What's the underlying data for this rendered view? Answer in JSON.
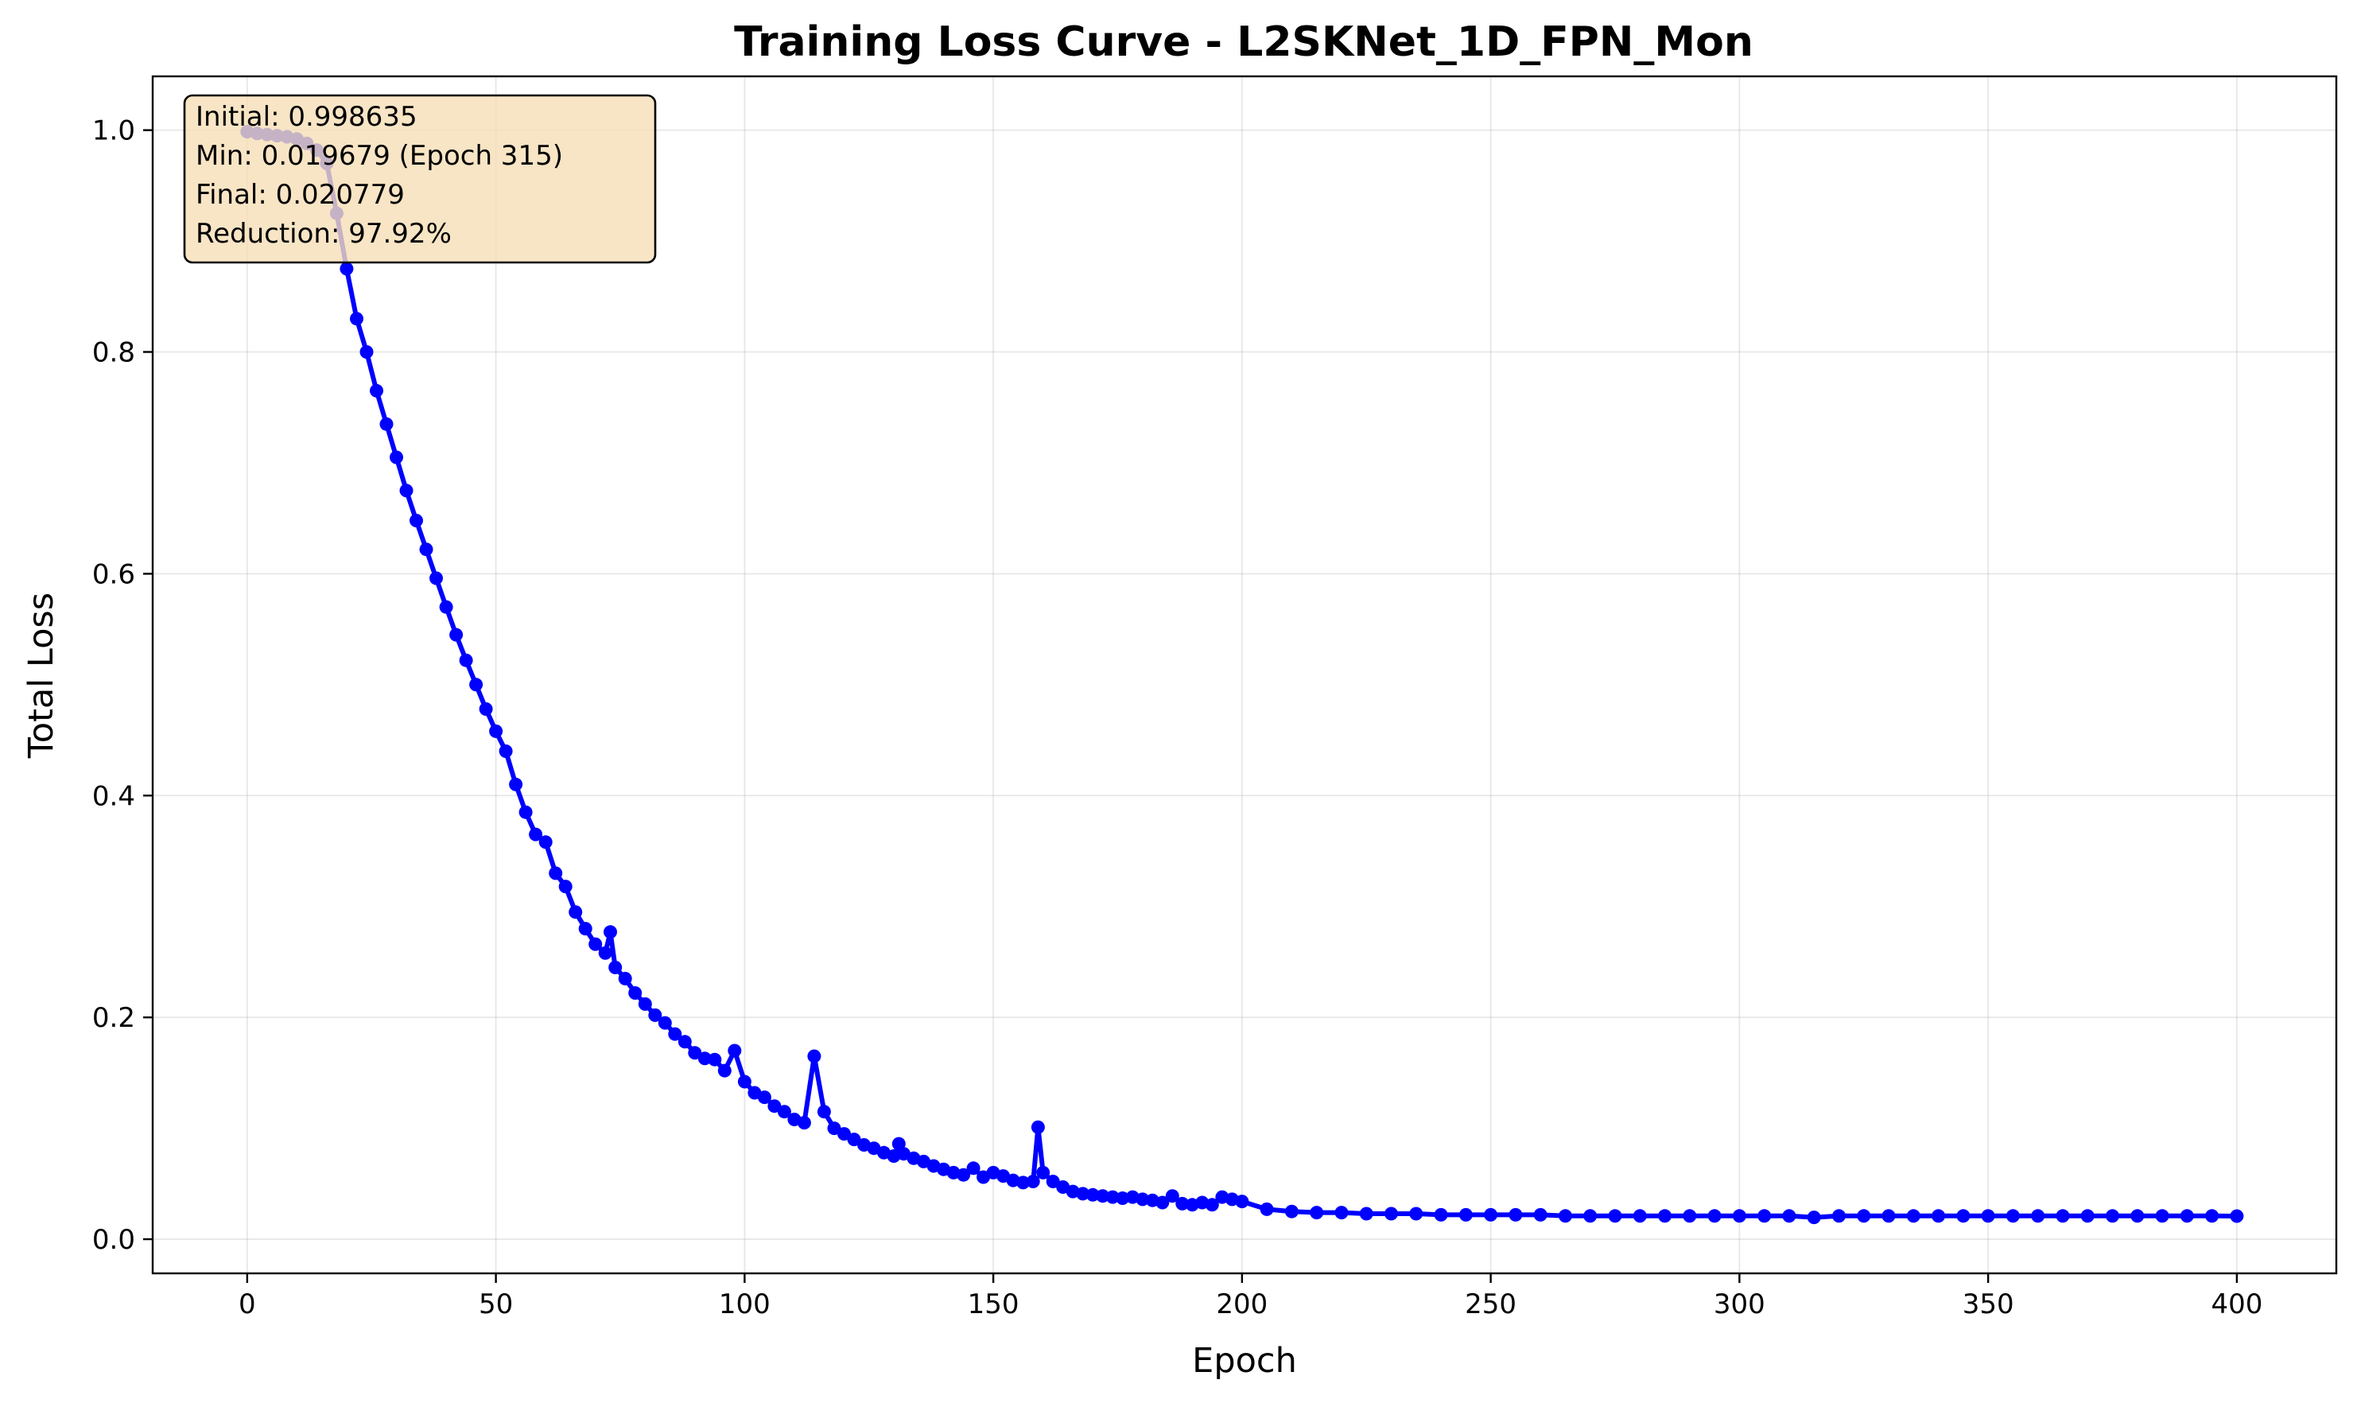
{
  "chart_data": {
    "type": "line",
    "title": "Training Loss Curve - L2SKNet_1D_FPN_Mon",
    "xlabel": "Epoch",
    "ylabel": "Total Loss",
    "xlim": [
      -19,
      420
    ],
    "ylim": [
      -0.0308,
      1.0485
    ],
    "xticks": [
      0,
      50,
      100,
      150,
      200,
      250,
      300,
      350,
      400
    ],
    "yticks": [
      0.0,
      0.2,
      0.4,
      0.6,
      0.8,
      1.0
    ],
    "xtick_labels": [
      "0",
      "50",
      "100",
      "150",
      "200",
      "250",
      "300",
      "350",
      "400"
    ],
    "ytick_labels": [
      "0.0",
      "0.2",
      "0.4",
      "0.6",
      "0.8",
      "1.0"
    ],
    "grid": true,
    "line_color": "#0000ff",
    "annotation_box_color": "#f5deb3",
    "annotation": [
      "Initial: 0.998635",
      "Min: 0.019679 (Epoch 315)",
      "Final: 0.020779",
      "Reduction: 97.92%"
    ],
    "series": [
      {
        "x": [
          0,
          2,
          4,
          6,
          8,
          10,
          12,
          14,
          16,
          18,
          20,
          22,
          24,
          26,
          28,
          30,
          32,
          34,
          36,
          38,
          40,
          42,
          44,
          46,
          48,
          50,
          52,
          54,
          56,
          58,
          60,
          62,
          64,
          66,
          68,
          70,
          72,
          73,
          74,
          76,
          78,
          80,
          82,
          84,
          86,
          88,
          90,
          92,
          94,
          96,
          98,
          100,
          102,
          104,
          106,
          108,
          110,
          112,
          114,
          116,
          118,
          120,
          122,
          124,
          126,
          128,
          130,
          131,
          132,
          134,
          136,
          138,
          140,
          142,
          144,
          146,
          148,
          150,
          152,
          154,
          156,
          158,
          159,
          160,
          162,
          164,
          166,
          168,
          170,
          172,
          174,
          176,
          178,
          180,
          182,
          184,
          186,
          188,
          190,
          192,
          194,
          196,
          198,
          200,
          205,
          210,
          215,
          220,
          225,
          230,
          235,
          240,
          245,
          250,
          255,
          260,
          265,
          270,
          275,
          280,
          285,
          290,
          295,
          300,
          305,
          310,
          315,
          320,
          325,
          330,
          335,
          340,
          345,
          350,
          355,
          360,
          365,
          370,
          375,
          380,
          385,
          390,
          395,
          400
        ],
        "y": [
          0.9986,
          0.997,
          0.996,
          0.995,
          0.994,
          0.992,
          0.988,
          0.982,
          0.97,
          0.925,
          0.875,
          0.83,
          0.8,
          0.765,
          0.735,
          0.705,
          0.675,
          0.648,
          0.622,
          0.596,
          0.57,
          0.545,
          0.522,
          0.5,
          0.478,
          0.458,
          0.44,
          0.41,
          0.385,
          0.365,
          0.358,
          0.33,
          0.318,
          0.295,
          0.28,
          0.266,
          0.258,
          0.277,
          0.245,
          0.235,
          0.222,
          0.212,
          0.202,
          0.195,
          0.185,
          0.178,
          0.168,
          0.163,
          0.162,
          0.152,
          0.17,
          0.142,
          0.132,
          0.128,
          0.12,
          0.115,
          0.108,
          0.105,
          0.165,
          0.115,
          0.1,
          0.095,
          0.09,
          0.085,
          0.082,
          0.078,
          0.075,
          0.086,
          0.077,
          0.073,
          0.07,
          0.066,
          0.063,
          0.06,
          0.058,
          0.064,
          0.056,
          0.06,
          0.057,
          0.053,
          0.051,
          0.052,
          0.101,
          0.06,
          0.052,
          0.047,
          0.043,
          0.041,
          0.04,
          0.039,
          0.038,
          0.037,
          0.038,
          0.036,
          0.035,
          0.033,
          0.039,
          0.032,
          0.031,
          0.033,
          0.031,
          0.038,
          0.036,
          0.034,
          0.027,
          0.025,
          0.024,
          0.024,
          0.023,
          0.023,
          0.023,
          0.022,
          0.022,
          0.022,
          0.022,
          0.022,
          0.021,
          0.021,
          0.021,
          0.021,
          0.021,
          0.021,
          0.021,
          0.021,
          0.021,
          0.021,
          0.0197,
          0.021,
          0.021,
          0.021,
          0.021,
          0.021,
          0.021,
          0.021,
          0.021,
          0.021,
          0.021,
          0.021,
          0.021,
          0.021,
          0.021,
          0.021,
          0.021,
          0.0208
        ]
      }
    ]
  }
}
